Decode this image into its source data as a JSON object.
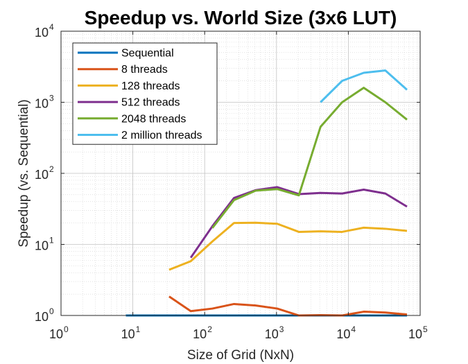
{
  "chart_data": {
    "type": "line",
    "title": "Speedup vs. World Size (3x6 LUT)",
    "xlabel": "Size of Grid (NxN)",
    "ylabel": "Speedup (vs. Sequential)",
    "xscale": "log",
    "yscale": "log",
    "xlim": [
      1,
      100000
    ],
    "ylim": [
      1,
      10000
    ],
    "xticks": [
      {
        "base": "10",
        "exp": "0"
      },
      {
        "base": "10",
        "exp": "1"
      },
      {
        "base": "10",
        "exp": "2"
      },
      {
        "base": "10",
        "exp": "3"
      },
      {
        "base": "10",
        "exp": "4"
      },
      {
        "base": "10",
        "exp": "5"
      }
    ],
    "yticks": [
      {
        "base": "10",
        "exp": "0"
      },
      {
        "base": "10",
        "exp": "1"
      },
      {
        "base": "10",
        "exp": "2"
      },
      {
        "base": "10",
        "exp": "3"
      },
      {
        "base": "10",
        "exp": "4"
      }
    ],
    "grid": true,
    "minor_grid": true,
    "legend_position": "top-left",
    "series": [
      {
        "name": "Sequential",
        "color": "#0072BD",
        "x": [
          8,
          16,
          32,
          64,
          128,
          256,
          512,
          1024,
          2048,
          4096,
          8192,
          16384,
          32768,
          65536
        ],
        "y": [
          1,
          1,
          1,
          1,
          1,
          1,
          1,
          1,
          1,
          1,
          1,
          1,
          1,
          1
        ]
      },
      {
        "name": "8 threads",
        "color": "#D95319",
        "x": [
          32,
          64,
          128,
          256,
          512,
          1024,
          2048,
          4096,
          8192,
          16384,
          32768,
          65536
        ],
        "y": [
          1.85,
          1.15,
          1.25,
          1.45,
          1.38,
          1.25,
          1.0,
          1.01,
          1.0,
          1.13,
          1.1,
          1.03
        ]
      },
      {
        "name": "128 threads",
        "color": "#EDB120",
        "x": [
          32,
          64,
          128,
          256,
          512,
          1024,
          2048,
          4096,
          8192,
          16384,
          32768,
          65536
        ],
        "y": [
          4.4,
          5.8,
          11,
          20,
          20.2,
          19.5,
          15,
          15.3,
          15,
          17.2,
          16.6,
          15.5
        ]
      },
      {
        "name": "512 threads",
        "color": "#7E2F8E",
        "x": [
          64,
          128,
          256,
          512,
          1024,
          2048,
          4096,
          8192,
          16384,
          32768,
          65536
        ],
        "y": [
          6.5,
          18,
          45,
          58,
          64,
          51,
          53,
          52,
          59,
          52,
          34
        ]
      },
      {
        "name": "2048 threads",
        "color": "#77AC30",
        "x": [
          128,
          256,
          512,
          1024,
          2048,
          4096,
          8192,
          16384,
          32768,
          65536
        ],
        "y": [
          17,
          42,
          57,
          60,
          49,
          450,
          1000,
          1600,
          1000,
          570
        ]
      },
      {
        "name": "2 million threads",
        "color": "#4DBEEE",
        "x": [
          4096,
          8192,
          16384,
          32768,
          65536
        ],
        "y": [
          1000,
          2000,
          2600,
          2800,
          1500
        ]
      }
    ]
  }
}
